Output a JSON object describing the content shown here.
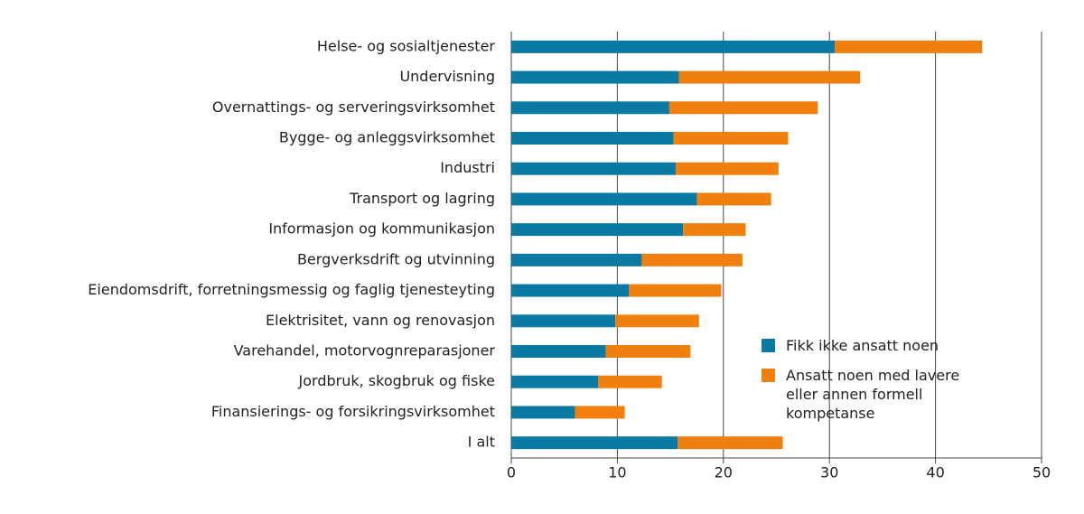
{
  "chart_data": {
    "type": "stacked-barh",
    "categories": [
      "Helse- og sosialtjenester",
      "Undervisning",
      "Overnattings- og serveringsvirksomhet",
      "Bygge- og anleggsvirksomhet",
      "Industri",
      "Transport og lagring",
      "Informasjon og kommunikasjon",
      "Bergverksdrift og utvinning",
      "Eiendomsdrift, forretningsmessig og faglig tjenesteyting",
      "Elektrisitet, vann og renovasjon",
      "Varehandel, motorvognreparasjoner",
      "Jordbruk, skogbruk og fiske",
      "Finansierings- og forsikringsvirksomhet",
      "I alt"
    ],
    "series": [
      {
        "name": "Fikk ikke ansatt noen",
        "color": "#0a7aa3",
        "values": [
          30.5,
          15.8,
          14.9,
          15.3,
          15.5,
          17.5,
          16.2,
          12.3,
          11.1,
          9.8,
          8.9,
          8.2,
          6.0,
          15.7
        ]
      },
      {
        "name": "Ansatt noen med lavere eller annen formell kompetanse",
        "color": "#f07f0e",
        "values": [
          13.9,
          17.1,
          14.0,
          10.8,
          9.7,
          7.0,
          5.9,
          9.5,
          8.7,
          7.9,
          8.0,
          6.0,
          4.7,
          9.9
        ]
      }
    ],
    "xlim": [
      0,
      50
    ],
    "xticks": [
      0,
      10,
      20,
      30,
      40,
      50
    ],
    "grid": true
  }
}
